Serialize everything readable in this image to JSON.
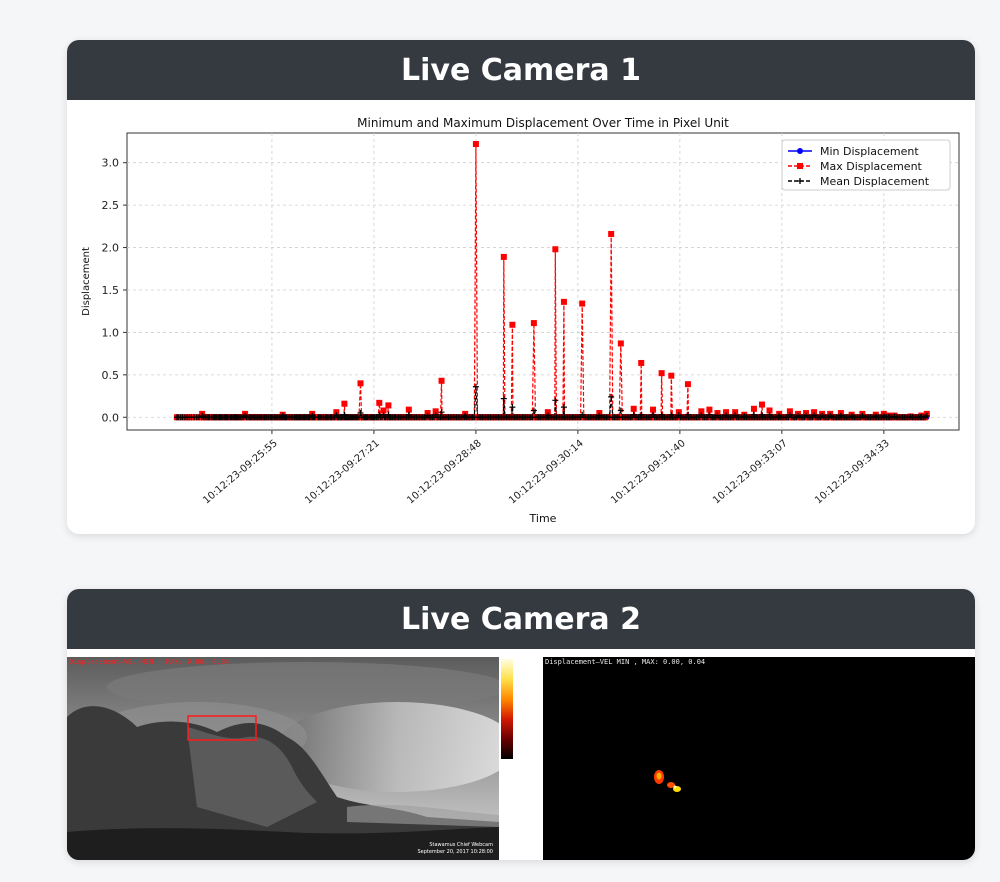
{
  "camera1": {
    "title": "Live Camera 1",
    "chart_data": {
      "type": "line",
      "title": "Minimum and Maximum Displacement Over Time in Pixel Unit",
      "xlabel": "Time",
      "ylabel": "Displacement",
      "ylim": [
        -0.15,
        3.35
      ],
      "y_ticks": [
        "0.0",
        "0.5",
        "1.0",
        "1.5",
        "2.0",
        "2.5",
        "3.0"
      ],
      "x_ticks": [
        "10:12:23-09:25:55",
        "10:12:23-09:27:21",
        "10:12:23-09:28:48",
        "10:12:23-09:30:14",
        "10:12:23-09:31:40",
        "10:12:23-09:33:07",
        "10:12:23-09:34:33"
      ],
      "grid": true,
      "legend_position": "top-right",
      "x": [
        0.3,
        0.55,
        1.0,
        1.35,
        1.8,
        2.2,
        2.6,
        3.0,
        3.5,
        4.0,
        4.4,
        4.9,
        5.3,
        5.6,
        5.9,
        6.15,
        6.35,
        6.7,
        7.0,
        7.25,
        7.45,
        7.7,
        8.0,
        8.2,
        8.4,
        8.65,
        8.9,
        9.2,
        9.35,
        9.5,
        9.7,
        10.0,
        10.3,
        10.5,
        10.75,
        11.0,
        11.2,
        11.4,
        11.6,
        11.85,
        12.1,
        12.4,
        12.7,
        13.0,
        13.25,
        13.55,
        13.85,
        14.05,
        14.3,
        14.55,
        14.8,
        15.05,
        15.3,
        15.55,
        15.8,
        16.05,
        16.35,
        16.6,
        16.85,
        17.1,
        17.4,
        17.7,
        17.95,
        18.2,
        18.5,
        18.75,
        19.0,
        19.3,
        19.55,
        19.8,
        20.05,
        20.3,
        20.5,
        20.7,
        21.0,
        21.3,
        21.6,
        21.9,
        22.2,
        22.45,
        22.65,
        22.9,
        23.1,
        23.35,
        23.6,
        23.85,
        24.05,
        24.3,
        24.55,
        24.8,
        25.0,
        25.3,
        25.6,
        25.85,
        26.0,
        26.6,
        26.75,
        27.0,
        27.3,
        27.6,
        27.9,
        28.1,
        28.3,
        28.6,
        28.9,
        29.1,
        29.4,
        29.7,
        30.0,
        30.2,
        30.4,
        30.7,
        30.9,
        31.1,
        31.4,
        31.6,
        31.8,
        32.0,
        32.2,
        32.4,
        32.6,
        32.8,
        33.0,
        33.25,
        33.5,
        33.7,
        33.9,
        34.2,
        34.5,
        34.7,
        35.0,
        35.2,
        35.4,
        35.6,
        35.8,
        36.1,
        36.4,
        36.6,
        36.8,
        37.0,
        37.2,
        37.5,
        37.8,
        38.0,
        38.2,
        38.5,
        38.8,
        39.0,
        39.2,
        39.5,
        39.8,
        40.0,
        40.2,
        40.5,
        40.8,
        41.0,
        41.3,
        41.6,
        41.9,
        42.2,
        42.5,
        42.8,
        43.1,
        43.4,
        43.7,
        44.0,
        44.3,
        44.6,
        44.9,
        45.2,
        45.5,
        45.8,
        46.1,
        46.4,
        46.7,
        47.0,
        47.3,
        47.6,
        47.9,
        48.2,
        48.5,
        48.8,
        49.1,
        49.4,
        49.7,
        50.0,
        50.3,
        50.6,
        50.9,
        51.2,
        51.5,
        51.8,
        52.1,
        52.4,
        52.7,
        53.0,
        53.3,
        53.6,
        53.9,
        54.2,
        54.5,
        54.8,
        55.1,
        55.4,
        55.7,
        56.0,
        56.3,
        56.6,
        56.9,
        57.2,
        57.5,
        57.8,
        58.1,
        58.4,
        58.7,
        59.0,
        59.3,
        59.6,
        59.9,
        60.2,
        60.5,
        60.8,
        61.1,
        61.4,
        61.7,
        62.0,
        62.3,
        62.6,
        62.9,
        63.2,
        63.5,
        63.8,
        64.1,
        64.4,
        64.7,
        65.0,
        65.3,
        65.6,
        65.9,
        66.2,
        66.5,
        66.8,
        67.1,
        67.4,
        67.7,
        68.0,
        68.3,
        68.6,
        68.9,
        69.2,
        69.5,
        69.8,
        70.1,
        70.4,
        70.7,
        71.0,
        71.3,
        71.6,
        71.9,
        72.2,
        72.5,
        72.8,
        73.1,
        73.4,
        73.7,
        74.0,
        74.3,
        74.6,
        74.9,
        75.2,
        75.5,
        75.8,
        76.1,
        76.4,
        76.7,
        77.0,
        77.3,
        77.6,
        77.9,
        78.2,
        78.5,
        78.8,
        79.1,
        79.4,
        79.7,
        80.0,
        80.3,
        80.6,
        80.9,
        81.2,
        81.5,
        81.8,
        82.1,
        82.4,
        82.7,
        83.0,
        83.3,
        83.6,
        83.9,
        84.2,
        84.5,
        84.8,
        85.1,
        85.4,
        85.7,
        86.0,
        86.3,
        86.6,
        86.9,
        87.2,
        87.5,
        87.8,
        88.1,
        88.4,
        88.7,
        89.0,
        89.3,
        89.6,
        89.9,
        90.2,
        90.5,
        90.8,
        91.1,
        91.4,
        91.7,
        92.0,
        92.3,
        92.6,
        92.9,
        93.2,
        93.5,
        93.8,
        94.1,
        94.4,
        94.7,
        95.0,
        95.3,
        95.6,
        95.9,
        96.2,
        96.5,
        96.8,
        97.1,
        97.4,
        97.7,
        98.0,
        98.3,
        98.6,
        98.9,
        99.2,
        99.5,
        99.8,
        100.1,
        100.4,
        100.7,
        101.0,
        101.3,
        101.6,
        101.9,
        102.2,
        102.5,
        102.8,
        103.1,
        103.4,
        103.7,
        104.0,
        104.3,
        104.6,
        104.9,
        105.2,
        105.5,
        105.8,
        106.1,
        106.4,
        106.7,
        107.0,
        107.3,
        107.6,
        107.9,
        108.2,
        108.5,
        108.8,
        109.1,
        109.4,
        109.7,
        110.0,
        110.3,
        110.6,
        110.9,
        111.2,
        111.5,
        111.8,
        112.1,
        112.4,
        112.7,
        113.0,
        113.3,
        113.6,
        113.9,
        114.2,
        114.5,
        114.8,
        115.1,
        115.4,
        115.7,
        116.0,
        116.3,
        116.6,
        116.9,
        117.2,
        117.5,
        117.8,
        118.1,
        118.4,
        118.7,
        119.0,
        119.3,
        119.6,
        119.9,
        120.2,
        120.5,
        120.8,
        121.1,
        121.4,
        121.7,
        122.0,
        122.3,
        122.6,
        122.9,
        123.2,
        123.5,
        123.8,
        124.1,
        124.4,
        124.7,
        125.0,
        125.3,
        125.6,
        125.9,
        126.2,
        126.5,
        126.8,
        127.1,
        127.4,
        127.7,
        128.0,
        128.3,
        128.6,
        128.9,
        129.2,
        129.5,
        129.8,
        130.1,
        130.4,
        130.7,
        131.0,
        131.3,
        131.6,
        131.9,
        132.2,
        132.5,
        132.8,
        133.1,
        133.4,
        133.7,
        134.0,
        134.3,
        134.6,
        134.9,
        135.2,
        135.5,
        135.8,
        136.1,
        136.4,
        136.7,
        137.0,
        137.3,
        137.6,
        137.9,
        138.2,
        138.5,
        138.8,
        139.1,
        139.4,
        139.7,
        140.0
      ],
      "series": [
        {
          "name": "Min Displacement",
          "color": "#0000ff",
          "marker": "circle",
          "line": "solid"
        },
        {
          "name": "Max Displacement",
          "color": "#ff0000",
          "marker": "square",
          "line": "dashed"
        },
        {
          "name": "Mean Displacement",
          "color": "#000000",
          "marker": "plus",
          "line": "dashed"
        }
      ],
      "max_peaks": [
        {
          "x": 5.0,
          "y": 0.04
        },
        {
          "x": 13.0,
          "y": 0.04
        },
        {
          "x": 20.0,
          "y": 0.03
        },
        {
          "x": 25.5,
          "y": 0.04
        },
        {
          "x": 30.0,
          "y": 0.06
        },
        {
          "x": 31.5,
          "y": 0.16
        },
        {
          "x": 34.5,
          "y": 0.4
        },
        {
          "x": 38.0,
          "y": 0.17
        },
        {
          "x": 38.8,
          "y": 0.08
        },
        {
          "x": 39.7,
          "y": 0.14
        },
        {
          "x": 43.5,
          "y": 0.09
        },
        {
          "x": 47.0,
          "y": 0.05
        },
        {
          "x": 48.5,
          "y": 0.07
        },
        {
          "x": 49.6,
          "y": 0.43
        },
        {
          "x": 54.0,
          "y": 0.04
        },
        {
          "x": 56.0,
          "y": 3.22
        },
        {
          "x": 61.2,
          "y": 1.89
        },
        {
          "x": 62.8,
          "y": 1.09
        },
        {
          "x": 66.8,
          "y": 1.11
        },
        {
          "x": 69.4,
          "y": 0.06
        },
        {
          "x": 70.8,
          "y": 1.98
        },
        {
          "x": 72.4,
          "y": 1.36
        },
        {
          "x": 75.8,
          "y": 1.34
        },
        {
          "x": 79.0,
          "y": 0.05
        },
        {
          "x": 81.2,
          "y": 2.16
        },
        {
          "x": 83.0,
          "y": 0.87
        },
        {
          "x": 85.4,
          "y": 0.1
        },
        {
          "x": 86.8,
          "y": 0.64
        },
        {
          "x": 89.0,
          "y": 0.09
        },
        {
          "x": 90.6,
          "y": 0.52
        },
        {
          "x": 92.4,
          "y": 0.49
        },
        {
          "x": 93.8,
          "y": 0.06
        },
        {
          "x": 95.5,
          "y": 0.39
        },
        {
          "x": 98.0,
          "y": 0.07
        },
        {
          "x": 99.5,
          "y": 0.09
        },
        {
          "x": 101.0,
          "y": 0.05
        },
        {
          "x": 102.6,
          "y": 0.06
        },
        {
          "x": 104.3,
          "y": 0.06
        },
        {
          "x": 106.0,
          "y": 0.03
        },
        {
          "x": 107.8,
          "y": 0.1
        },
        {
          "x": 109.3,
          "y": 0.15
        },
        {
          "x": 110.7,
          "y": 0.08
        },
        {
          "x": 112.5,
          "y": 0.04
        },
        {
          "x": 114.5,
          "y": 0.07
        },
        {
          "x": 116.0,
          "y": 0.04
        },
        {
          "x": 117.5,
          "y": 0.05
        },
        {
          "x": 119.0,
          "y": 0.06
        },
        {
          "x": 120.5,
          "y": 0.04
        },
        {
          "x": 122.0,
          "y": 0.04
        },
        {
          "x": 124.0,
          "y": 0.05
        },
        {
          "x": 126.0,
          "y": 0.03
        },
        {
          "x": 128.0,
          "y": 0.04
        },
        {
          "x": 130.5,
          "y": 0.03
        },
        {
          "x": 132.0,
          "y": 0.04
        },
        {
          "x": 133.0,
          "y": 0.02
        },
        {
          "x": 134.0,
          "y": 0.02
        },
        {
          "x": 137.0,
          "y": 0.01
        },
        {
          "x": 139.0,
          "y": 0.02
        },
        {
          "x": 140.0,
          "y": 0.04
        }
      ],
      "mean_peaks": [
        {
          "x": 56.0,
          "y": 0.36
        },
        {
          "x": 61.2,
          "y": 0.22
        },
        {
          "x": 62.8,
          "y": 0.12
        },
        {
          "x": 70.8,
          "y": 0.2
        },
        {
          "x": 72.4,
          "y": 0.12
        },
        {
          "x": 81.2,
          "y": 0.24
        },
        {
          "x": 83.0,
          "y": 0.08
        },
        {
          "x": 34.5,
          "y": 0.05
        },
        {
          "x": 49.6,
          "y": 0.06
        },
        {
          "x": 66.8,
          "y": 0.08
        }
      ]
    }
  },
  "camera2": {
    "title": "Live Camera 2",
    "left_overlay": "Displacement—VEL MIN , MAX: 0.00, 0.04",
    "right_overlay": "Displacement—VEL MIN , MAX: 0.00, 0.04",
    "watermark_line1": "Stawamus Chief Webcam",
    "watermark_line2": "September 20, 2017 10:28:00"
  }
}
